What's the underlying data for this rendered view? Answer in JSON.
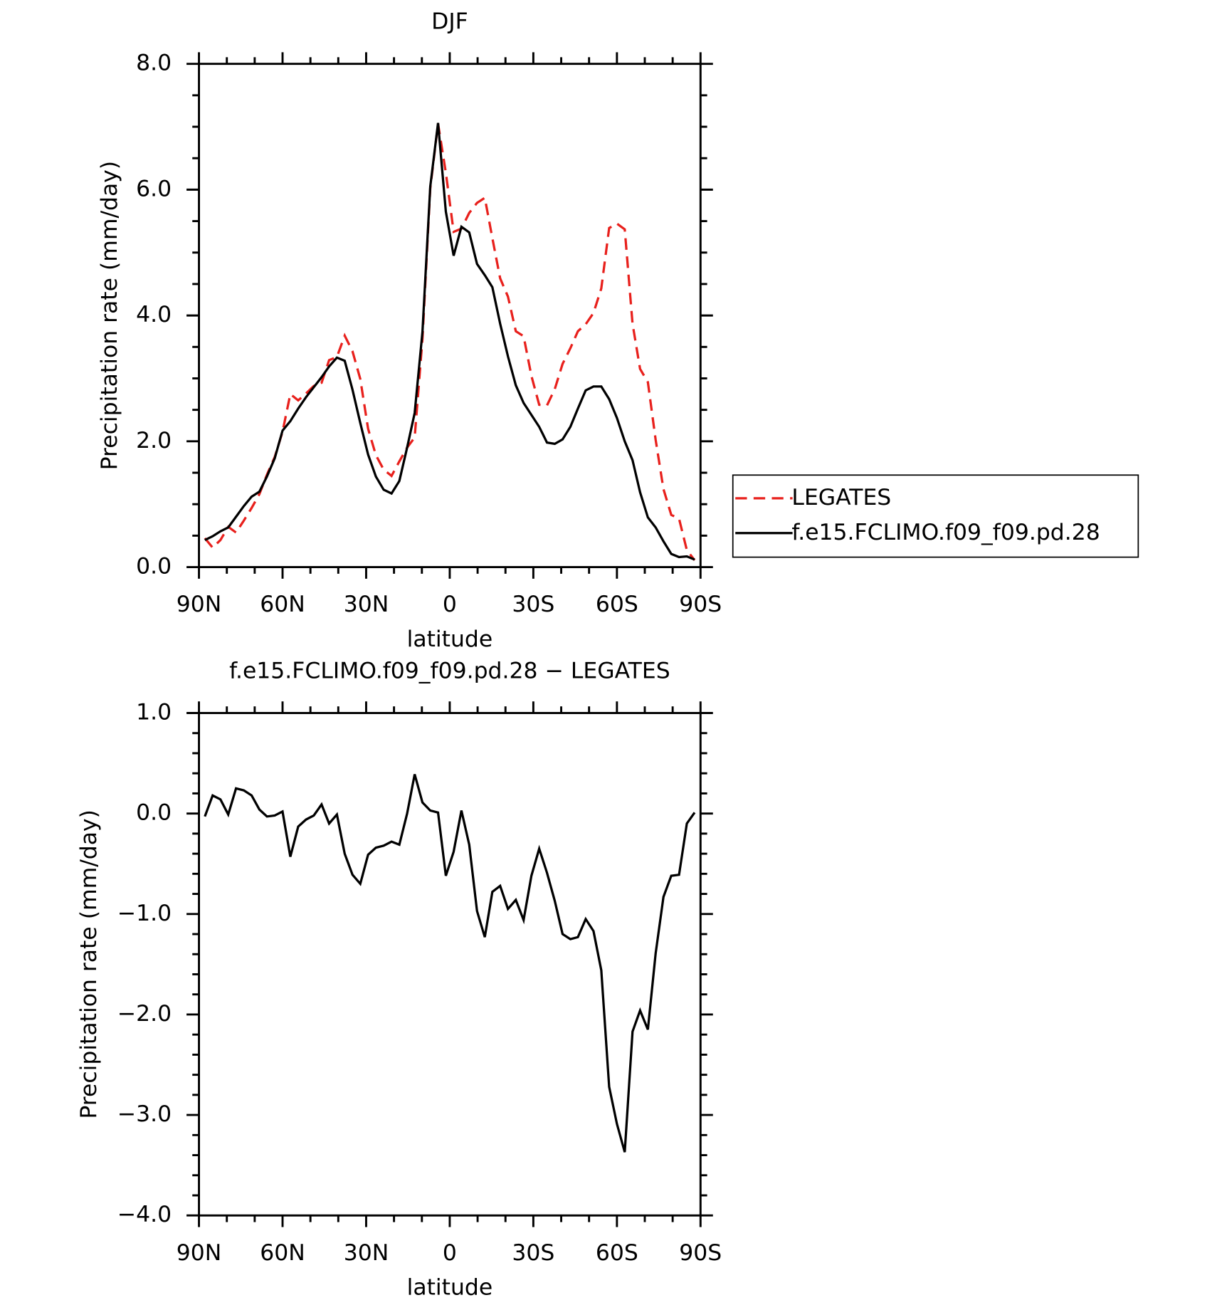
{
  "chart_data": [
    {
      "type": "line",
      "title": "DJF",
      "xlabel": "latitude",
      "ylabel": "Precipitation rate (mm/day)",
      "x": [
        87.9,
        85.1,
        82.3,
        79.5,
        76.7,
        73.9,
        71.1,
        68.3,
        65.6,
        62.8,
        60.0,
        57.2,
        54.4,
        51.6,
        48.8,
        46.0,
        43.3,
        40.5,
        37.7,
        34.9,
        32.1,
        29.3,
        26.5,
        23.7,
        20.9,
        18.1,
        15.3,
        12.6,
        9.8,
        7.0,
        4.2,
        1.4,
        -1.4,
        -4.2,
        -7.0,
        -9.8,
        -12.6,
        -15.3,
        -18.1,
        -20.9,
        -23.7,
        -26.5,
        -29.3,
        -32.1,
        -34.9,
        -37.7,
        -40.5,
        -43.3,
        -46.0,
        -48.8,
        -51.6,
        -54.4,
        -57.2,
        -60.0,
        -62.8,
        -65.6,
        -68.3,
        -71.1,
        -73.9,
        -76.7,
        -79.5,
        -82.3,
        -85.1,
        -87.9
      ],
      "xlim": [
        90,
        -90
      ],
      "xticks": [
        {
          "value": 90,
          "label": "90N"
        },
        {
          "value": 60,
          "label": "60N"
        },
        {
          "value": 30,
          "label": "30N"
        },
        0,
        {
          "value": -30,
          "label": "30S"
        },
        {
          "value": -60,
          "label": "60S"
        },
        {
          "value": -90,
          "label": "90S"
        }
      ],
      "ylim": [
        0,
        8
      ],
      "yticks": [
        {
          "value": 0,
          "label": "0.0"
        },
        {
          "value": 2,
          "label": "2.0"
        },
        {
          "value": 4,
          "label": "4.0"
        },
        {
          "value": 6,
          "label": "6.0"
        },
        {
          "value": 8,
          "label": "8.0"
        }
      ],
      "legend": "right",
      "series": [
        {
          "name": "LEGATES",
          "color": "#e8201c",
          "line_style": "dashed",
          "values": [
            0.46,
            0.31,
            0.43,
            0.64,
            0.55,
            0.74,
            0.94,
            1.16,
            1.47,
            1.75,
            2.15,
            2.75,
            2.65,
            2.76,
            2.88,
            2.93,
            3.29,
            3.34,
            3.68,
            3.43,
            2.99,
            2.2,
            1.78,
            1.55,
            1.45,
            1.68,
            1.9,
            2.06,
            3.63,
            6.02,
            7.05,
            6.27,
            5.33,
            5.38,
            5.63,
            5.79,
            5.87,
            5.23,
            4.59,
            4.3,
            3.75,
            3.67,
            3.04,
            2.58,
            2.57,
            2.83,
            3.23,
            3.48,
            3.75,
            3.86,
            4.04,
            4.43,
            5.39,
            5.46,
            5.37,
            3.87,
            3.15,
            2.94,
            2.02,
            1.24,
            0.83,
            0.77,
            0.27,
            0.11
          ]
        },
        {
          "name": "f.e15.FCLIMO.f09_f09.pd.28",
          "color": "#000000",
          "line_style": "solid",
          "values": [
            0.43,
            0.49,
            0.57,
            0.63,
            0.8,
            0.97,
            1.12,
            1.2,
            1.44,
            1.73,
            2.17,
            2.32,
            2.52,
            2.7,
            2.86,
            3.02,
            3.19,
            3.33,
            3.28,
            2.82,
            2.29,
            1.79,
            1.44,
            1.23,
            1.17,
            1.37,
            1.9,
            2.45,
            3.74,
            6.05,
            7.06,
            5.65,
            4.95,
            5.41,
            5.32,
            4.82,
            4.64,
            4.45,
            3.87,
            3.35,
            2.89,
            2.61,
            2.42,
            2.23,
            1.98,
            1.96,
            2.03,
            2.23,
            2.52,
            2.81,
            2.87,
            2.87,
            2.67,
            2.37,
            2.0,
            1.7,
            1.19,
            0.79,
            0.63,
            0.41,
            0.21,
            0.16,
            0.17,
            0.12
          ]
        }
      ]
    },
    {
      "type": "line",
      "title": "f.e15.FCLIMO.f09_f09.pd.28 − LEGATES",
      "xlabel": "latitude",
      "ylabel": "Precipitation rate (mm/day)",
      "x": [
        87.9,
        85.1,
        82.3,
        79.5,
        76.7,
        73.9,
        71.1,
        68.3,
        65.6,
        62.8,
        60.0,
        57.2,
        54.4,
        51.6,
        48.8,
        46.0,
        43.3,
        40.5,
        37.7,
        34.9,
        32.1,
        29.3,
        26.5,
        23.7,
        20.9,
        18.1,
        15.3,
        12.6,
        9.8,
        7.0,
        4.2,
        1.4,
        -1.4,
        -4.2,
        -7.0,
        -9.8,
        -12.6,
        -15.3,
        -18.1,
        -20.9,
        -23.7,
        -26.5,
        -29.3,
        -32.1,
        -34.9,
        -37.7,
        -40.5,
        -43.3,
        -46.0,
        -48.8,
        -51.6,
        -54.4,
        -57.2,
        -60.0,
        -62.8,
        -65.6,
        -68.3,
        -71.1,
        -73.9,
        -76.7,
        -79.5,
        -82.3,
        -85.1,
        -87.9
      ],
      "xlim": [
        90,
        -90
      ],
      "xticks": [
        {
          "value": 90,
          "label": "90N"
        },
        {
          "value": 60,
          "label": "60N"
        },
        {
          "value": 30,
          "label": "30N"
        },
        0,
        {
          "value": -30,
          "label": "30S"
        },
        {
          "value": -60,
          "label": "60S"
        },
        {
          "value": -90,
          "label": "90S"
        }
      ],
      "ylim": [
        -4,
        1
      ],
      "yticks": [
        {
          "value": -4,
          "label": "−4.0"
        },
        {
          "value": -3,
          "label": "−3.0"
        },
        {
          "value": -2,
          "label": "−2.0"
        },
        {
          "value": -1,
          "label": "−1.0"
        },
        {
          "value": 0,
          "label": "0.0"
        },
        {
          "value": 1,
          "label": "1.0"
        }
      ],
      "series": [
        {
          "color": "#000000",
          "line_style": "solid",
          "values": [
            -0.03,
            0.18,
            0.14,
            -0.01,
            0.25,
            0.23,
            0.18,
            0.04,
            -0.03,
            -0.02,
            0.02,
            -0.43,
            -0.13,
            -0.06,
            -0.02,
            0.09,
            -0.1,
            -0.01,
            -0.4,
            -0.61,
            -0.7,
            -0.41,
            -0.34,
            -0.32,
            -0.28,
            -0.31,
            0.0,
            0.39,
            0.11,
            0.03,
            0.01,
            -0.62,
            -0.38,
            0.03,
            -0.31,
            -0.97,
            -1.23,
            -0.78,
            -0.72,
            -0.95,
            -0.86,
            -1.06,
            -0.62,
            -0.35,
            -0.59,
            -0.87,
            -1.2,
            -1.25,
            -1.23,
            -1.05,
            -1.17,
            -1.56,
            -2.72,
            -3.09,
            -3.37,
            -2.17,
            -1.96,
            -2.15,
            -1.39,
            -0.83,
            -0.62,
            -0.61,
            -0.1,
            0.01
          ]
        }
      ]
    }
  ]
}
